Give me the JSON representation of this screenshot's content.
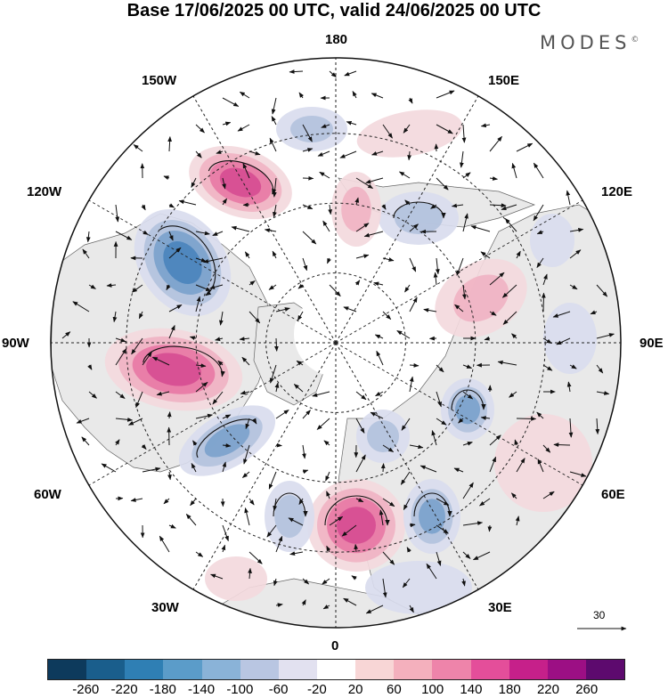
{
  "title": "Base 17/06/2025 00 UTC, valid 24/06/2025 00 UTC",
  "brand": "MODES",
  "brand_mark": "©",
  "longitude_labels": {
    "top": "180",
    "bottom": "0",
    "left": "90W",
    "right": "90E",
    "upper_left_1": "150W",
    "upper_left_2": "120W",
    "upper_right_1": "150E",
    "upper_right_2": "120E",
    "lower_left_1": "60W",
    "lower_left_2": "30W",
    "lower_right_1": "60E",
    "lower_right_2": "30E"
  },
  "reference_vector_label": "30",
  "colorbar": {
    "colors": [
      "#0d3a5c",
      "#1a5e8c",
      "#2f7fb4",
      "#5b9cc9",
      "#8ab3d8",
      "#b9c6e2",
      "#e2e1f0",
      "#ffffff",
      "#f8d6d6",
      "#f4b0bd",
      "#ee84aa",
      "#e44e9a",
      "#c6208a",
      "#9c0f84",
      "#5d0a6e"
    ],
    "labels": [
      "-260",
      "-220",
      "-180",
      "-140",
      "-100",
      "-60",
      "-20",
      "20",
      "60",
      "100",
      "140",
      "180",
      "220",
      "260"
    ]
  },
  "anomaly_colors": {
    "land": "#e9e9e9",
    "neg_weak": "#d9dcee",
    "neg_mid": "#b3c2dd",
    "neg_strong": "#7ca2cc",
    "neg_core": "#4b84bd",
    "pos_weak": "#f3d9dd",
    "pos_mid": "#f0b3c3",
    "pos_strong": "#e87aa5",
    "pos_core": "#d64d93"
  }
}
